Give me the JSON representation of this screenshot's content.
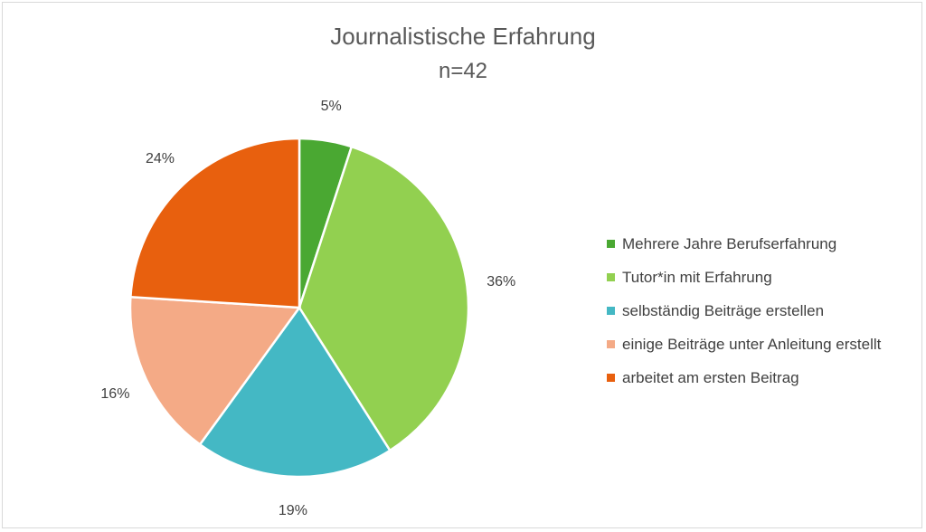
{
  "chart_data": {
    "type": "pie",
    "title": "Journalistische Erfahrung",
    "subtitle": "n=42",
    "categories": [
      "Mehrere Jahre Berufserfahrung",
      "Tutor*in mit Erfahrung",
      "selbständig Beiträge erstellen",
      "einige Beiträge unter Anleitung erstellt",
      "arbeitet am ersten Beitrag"
    ],
    "values": [
      5,
      36,
      19,
      16,
      24
    ],
    "labels": [
      "5%",
      "36%",
      "19%",
      "16%",
      "24%"
    ],
    "colors": [
      "#4aa832",
      "#92d050",
      "#44b8c4",
      "#f4aa86",
      "#e8600e"
    ],
    "legend_position": "right"
  }
}
